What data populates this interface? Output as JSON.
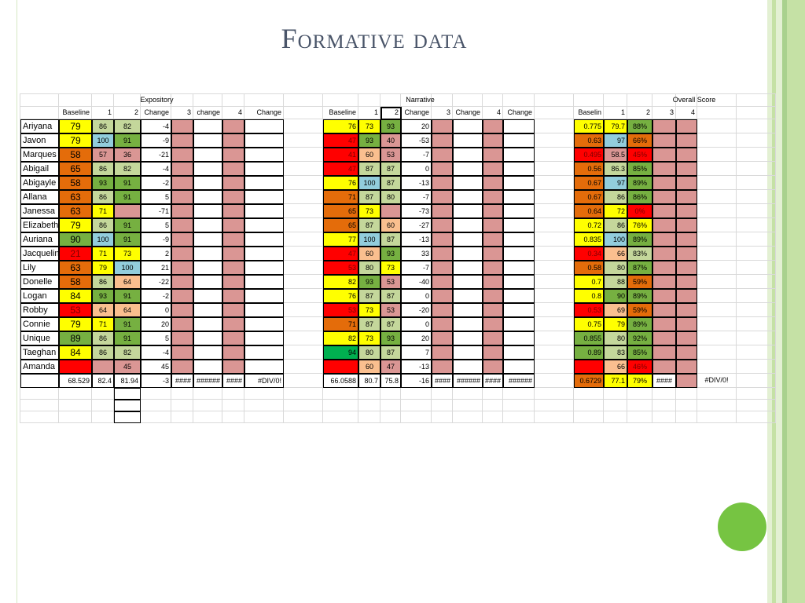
{
  "slide": {
    "title": "Formative data",
    "colors": {
      "rail_light": "#e3f0d3",
      "rail_mid": "#c5e1a5",
      "rail_dark": "#a9d18e",
      "title_text": "#4a5569",
      "circle": "#76c442"
    }
  },
  "sheet": {
    "sections": {
      "expository": "Expository",
      "narrative": "Narrative",
      "overall": "Overall Score"
    },
    "headers": {
      "expository": [
        "Baseline",
        "1",
        "2",
        "Change",
        "3",
        "change",
        "4",
        "Change"
      ],
      "narrative": [
        "Baseline",
        "1",
        "2",
        "Change",
        "3",
        "Change",
        "4",
        "Change"
      ],
      "overall": [
        "Baselin",
        "1",
        "2",
        "3",
        "4"
      ]
    },
    "students": [
      {
        "name": "Ariyana",
        "exp": [
          "79",
          "86",
          "82",
          "-4"
        ],
        "nar": [
          "76",
          "73",
          "93",
          "20"
        ],
        "ovr": [
          "0.775",
          "79.7",
          "88%"
        ]
      },
      {
        "name": "Javon",
        "exp": [
          "79",
          "100",
          "91",
          "-9"
        ],
        "nar": [
          "47",
          "93",
          "40",
          "-53"
        ],
        "ovr": [
          "0.63",
          "97",
          "66%"
        ]
      },
      {
        "name": "Marques",
        "exp": [
          "58",
          "57",
          "36",
          "-21"
        ],
        "nar": [
          "41",
          "60",
          "53",
          "-7"
        ],
        "ovr": [
          "0.495",
          "58.5",
          "45%"
        ]
      },
      {
        "name": "Abigail",
        "exp": [
          "65",
          "86",
          "82",
          "-4"
        ],
        "nar": [
          "47",
          "87",
          "87",
          "0"
        ],
        "ovr": [
          "0.56",
          "86.3",
          "85%"
        ]
      },
      {
        "name": "Abigayle",
        "exp": [
          "58",
          "93",
          "91",
          "-2"
        ],
        "nar": [
          "76",
          "100",
          "87",
          "-13"
        ],
        "ovr": [
          "0.67",
          "97",
          "89%"
        ]
      },
      {
        "name": "Allana",
        "exp": [
          "63",
          "86",
          "91",
          "5"
        ],
        "nar": [
          "71",
          "87",
          "80",
          "-7"
        ],
        "ovr": [
          "0.67",
          "86",
          "86%"
        ]
      },
      {
        "name": "Janessa",
        "exp": [
          "63",
          "71",
          "",
          "-71"
        ],
        "nar": [
          "65",
          "73",
          "",
          "-73"
        ],
        "ovr": [
          "0.64",
          "72",
          "0%"
        ]
      },
      {
        "name": "Elizabeth",
        "exp": [
          "79",
          "86",
          "91",
          "5"
        ],
        "nar": [
          "65",
          "87",
          "60",
          "-27"
        ],
        "ovr": [
          "0.72",
          "86",
          "76%"
        ]
      },
      {
        "name": "Auriana",
        "exp": [
          "90",
          "100",
          "91",
          "-9"
        ],
        "nar": [
          "77",
          "100",
          "87",
          "-13"
        ],
        "ovr": [
          "0.835",
          "100",
          "89%"
        ]
      },
      {
        "name": "Jacqueline",
        "exp": [
          "21",
          "71",
          "73",
          "2"
        ],
        "nar": [
          "47",
          "60",
          "93",
          "33"
        ],
        "ovr": [
          "0.34",
          "66",
          "83%"
        ]
      },
      {
        "name": "Lily",
        "exp": [
          "63",
          "79",
          "100",
          "21"
        ],
        "nar": [
          "53",
          "80",
          "73",
          "-7"
        ],
        "ovr": [
          "0.58",
          "80",
          "87%"
        ]
      },
      {
        "name": "Donelle",
        "exp": [
          "58",
          "86",
          "64",
          "-22"
        ],
        "nar": [
          "82",
          "93",
          "53",
          "-40"
        ],
        "ovr": [
          "0.7",
          "88",
          "59%"
        ]
      },
      {
        "name": "Logan",
        "exp": [
          "84",
          "93",
          "91",
          "-2"
        ],
        "nar": [
          "76",
          "87",
          "87",
          "0"
        ],
        "ovr": [
          "0.8",
          "90",
          "89%"
        ]
      },
      {
        "name": "Robby",
        "exp": [
          "53",
          "64",
          "64",
          "0"
        ],
        "nar": [
          "53",
          "73",
          "53",
          "-20"
        ],
        "ovr": [
          "0.53",
          "69",
          "59%"
        ]
      },
      {
        "name": "Connie",
        "exp": [
          "79",
          "71",
          "91",
          "20"
        ],
        "nar": [
          "71",
          "87",
          "87",
          "0"
        ],
        "ovr": [
          "0.75",
          "79",
          "89%"
        ]
      },
      {
        "name": "Unique",
        "exp": [
          "89",
          "86",
          "91",
          "5"
        ],
        "nar": [
          "82",
          "73",
          "93",
          "20"
        ],
        "ovr": [
          "0.855",
          "80",
          "92%"
        ]
      },
      {
        "name": "Taeghan",
        "exp": [
          "84",
          "86",
          "82",
          "-4"
        ],
        "nar": [
          "94",
          "80",
          "87",
          "7"
        ],
        "ovr": [
          "0.89",
          "83",
          "85%"
        ]
      },
      {
        "name": "Amanda",
        "exp": [
          "",
          "",
          "45",
          "45"
        ],
        "nar": [
          "",
          "60",
          "47",
          "-13"
        ],
        "ovr": [
          "",
          "66",
          "46%"
        ]
      }
    ],
    "averages": {
      "exp": [
        "68.529",
        "82.4",
        "81.94",
        "-3",
        "####",
        "######",
        "####",
        "#DIV/0!"
      ],
      "nar": [
        "66.0588",
        "80.7",
        "75.8",
        "-16",
        "####",
        "######",
        "####",
        "######"
      ],
      "ovr": [
        "0.6729",
        "77.1",
        "79%",
        "####",
        "",
        "#DIV/0!"
      ]
    },
    "cell_colors": {
      "red": "#ff0000",
      "orange": "#e46c0a",
      "yellow": "#ffff00",
      "light_orange": "#fabf8f",
      "light_green": "#c4d79b",
      "green": "#76b041",
      "dark_green": "#00b050",
      "blue": "#92cddc",
      "pink": "#da9694",
      "white": "#ffffff"
    }
  }
}
